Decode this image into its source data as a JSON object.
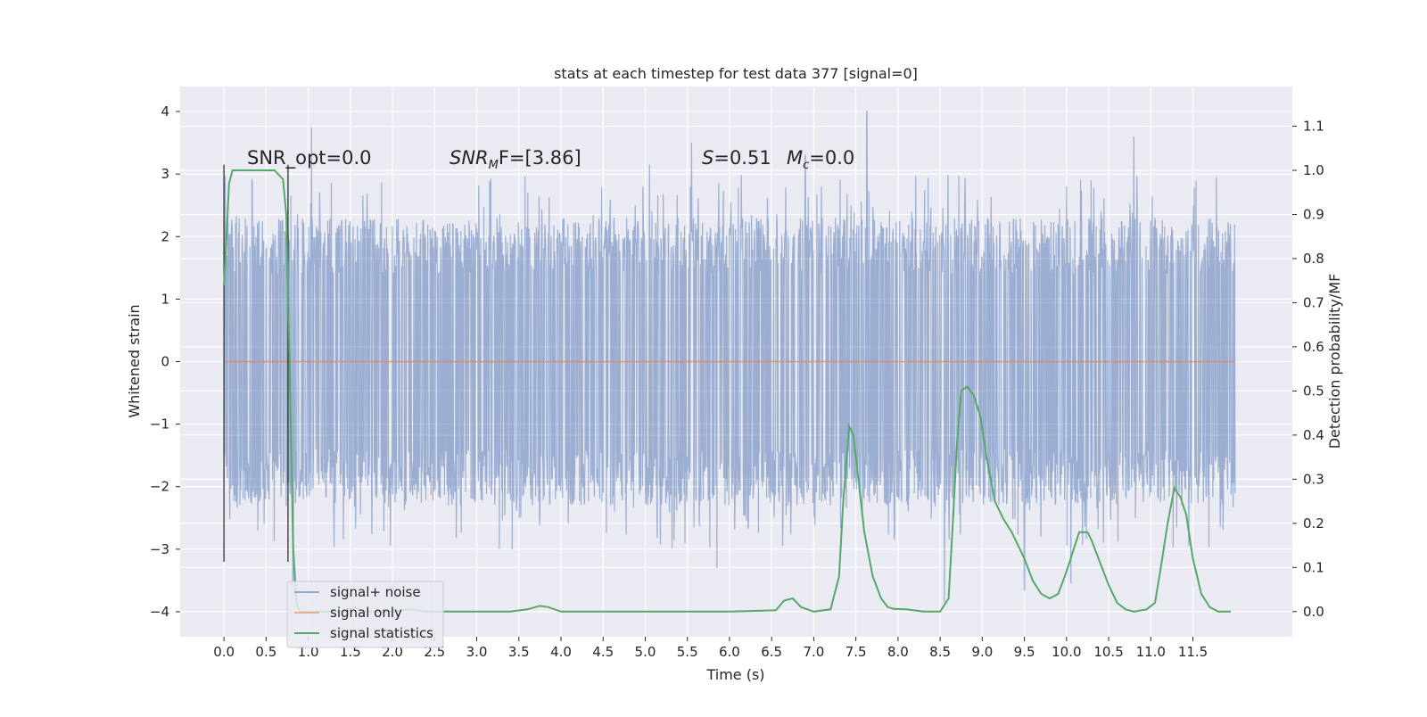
{
  "chart_data": {
    "type": "line",
    "title": "stats at each timestep for test data 377 [signal=0]",
    "xlabel": "Time (s)",
    "ylabel": "Whitened strain",
    "y2label": "Detection probability/MF",
    "xlim": [
      -0.52,
      12.68
    ],
    "ylim": [
      -4.4,
      4.4
    ],
    "y2lim": [
      -0.057,
      1.19
    ],
    "x_ticks": [
      "0.0",
      "0.5",
      "1.0",
      "1.5",
      "2.0",
      "2.5",
      "3.0",
      "3.5",
      "4.0",
      "4.5",
      "5.0",
      "5.5",
      "6.0",
      "6.5",
      "7.0",
      "7.5",
      "8.0",
      "8.5",
      "9.0",
      "9.5",
      "10.0",
      "10.5",
      "11.0",
      "11.5"
    ],
    "y_ticks": [
      "4",
      "3",
      "2",
      "1",
      "0",
      "−1",
      "−2",
      "−3",
      "−4"
    ],
    "y2_ticks": [
      "1.1",
      "1.0",
      "0.9",
      "0.8",
      "0.7",
      "0.6",
      "0.5",
      "0.4",
      "0.3",
      "0.2",
      "0.1",
      "0.0"
    ],
    "grid": true,
    "legend_position": "lower-left",
    "annotations": {
      "snr_opt": "SNR_opt=0.0",
      "snr_mf_italic": "SNR",
      "snr_mf_sub": "M",
      "snr_mf_rest": "F=[3.86]",
      "s_italic": "S",
      "s_rest": "=0.51",
      "mc_italic": "M",
      "mc_sub": "c",
      "mc_rest": "=0.0"
    },
    "markers_x": [
      0.0,
      0.76
    ],
    "series": [
      {
        "name": "signal+ noise",
        "color": "#4c72b0",
        "axis": "left",
        "kind": "noise",
        "x_range": [
          0.0,
          12.0
        ],
        "envelope": [
          -3.0,
          3.0
        ],
        "peaks": [
          {
            "x": 1.04,
            "y": 3.75
          },
          {
            "x": 7.63,
            "y": 4.0
          },
          {
            "x": 10.8,
            "y": 3.6
          },
          {
            "x": 5.05,
            "y": 3.15
          },
          {
            "x": 5.55,
            "y": 3.5
          },
          {
            "x": 6.9,
            "y": 3.3
          },
          {
            "x": 0.82,
            "y": -3.6
          },
          {
            "x": 5.85,
            "y": -3.3
          },
          {
            "x": 8.55,
            "y": -3.85
          },
          {
            "x": 9.5,
            "y": -3.65
          },
          {
            "x": 10.05,
            "y": -3.55
          },
          {
            "x": 11.45,
            "y": -2.95
          }
        ]
      },
      {
        "name": "signal only",
        "color": "#dd8452",
        "axis": "left",
        "x": [
          0.0,
          12.0
        ],
        "y": [
          0.0,
          0.0
        ]
      },
      {
        "name": "signal statistics",
        "color": "#55a868",
        "axis": "right",
        "x": [
          0.0,
          0.03,
          0.06,
          0.1,
          0.15,
          0.2,
          0.3,
          0.4,
          0.5,
          0.6,
          0.65,
          0.7,
          0.74,
          0.78,
          0.82,
          0.86,
          0.9,
          0.95,
          1.0,
          1.2,
          1.4,
          1.55,
          1.65,
          1.8,
          2.0,
          2.2,
          2.4,
          2.6,
          2.8,
          3.0,
          3.2,
          3.4,
          3.6,
          3.75,
          3.85,
          4.0,
          4.2,
          4.5,
          5.0,
          5.5,
          6.0,
          6.4,
          6.55,
          6.65,
          6.75,
          6.85,
          7.0,
          7.2,
          7.3,
          7.35,
          7.42,
          7.47,
          7.53,
          7.6,
          7.7,
          7.8,
          7.88,
          7.95,
          8.1,
          8.3,
          8.5,
          8.6,
          8.65,
          8.7,
          8.75,
          8.82,
          8.9,
          8.98,
          9.05,
          9.15,
          9.25,
          9.35,
          9.5,
          9.6,
          9.7,
          9.8,
          9.9,
          9.98,
          10.05,
          10.15,
          10.25,
          10.3,
          10.38,
          10.5,
          10.6,
          10.7,
          10.8,
          10.95,
          11.05,
          11.12,
          11.2,
          11.28,
          11.35,
          11.42,
          11.5,
          11.6,
          11.7,
          11.8,
          11.9,
          11.95
        ],
        "y": [
          0.74,
          0.85,
          0.97,
          1.0,
          1.0,
          1.0,
          1.0,
          1.0,
          1.0,
          1.0,
          0.99,
          0.98,
          0.9,
          0.55,
          0.15,
          0.02,
          0.0,
          0.0,
          0.0,
          0.0,
          0.0,
          0.01,
          0.0,
          0.0,
          0.0,
          0.005,
          0.0,
          0.0,
          0.0,
          0.0,
          0.0,
          0.0,
          0.005,
          0.013,
          0.01,
          0.0,
          0.0,
          0.0,
          0.0,
          0.0,
          0.0,
          0.002,
          0.003,
          0.025,
          0.03,
          0.01,
          0.0,
          0.005,
          0.08,
          0.25,
          0.42,
          0.4,
          0.3,
          0.18,
          0.08,
          0.03,
          0.01,
          0.006,
          0.005,
          0.0,
          0.0,
          0.03,
          0.2,
          0.38,
          0.5,
          0.51,
          0.49,
          0.44,
          0.35,
          0.25,
          0.21,
          0.18,
          0.12,
          0.07,
          0.04,
          0.03,
          0.04,
          0.08,
          0.12,
          0.18,
          0.18,
          0.16,
          0.12,
          0.06,
          0.02,
          0.005,
          0.0,
          0.005,
          0.02,
          0.1,
          0.2,
          0.28,
          0.26,
          0.22,
          0.12,
          0.04,
          0.01,
          0.0,
          0.0,
          0.0
        ]
      }
    ]
  }
}
